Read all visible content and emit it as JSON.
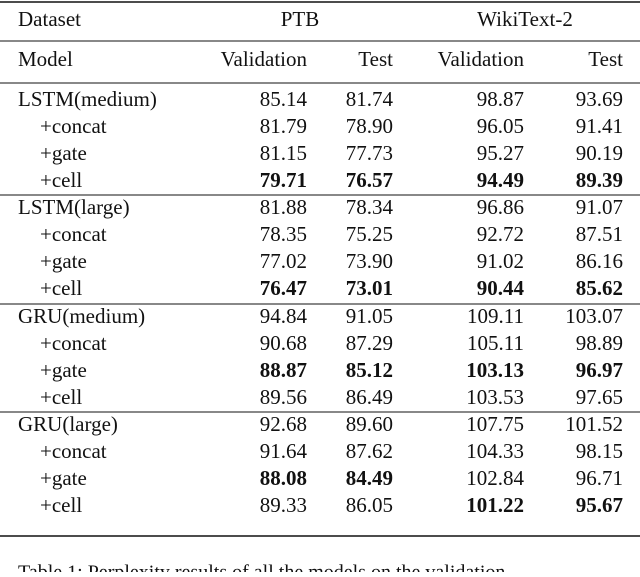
{
  "table": {
    "header": {
      "dataset": "Dataset",
      "groups": [
        "PTB",
        "WikiText-2"
      ]
    },
    "columns": [
      "Model",
      "Validation",
      "Test",
      "Validation",
      "Test"
    ],
    "sections": [
      {
        "rows": [
          [
            "LSTM(medium)",
            "85.14",
            "81.74",
            "98.87",
            "93.69"
          ],
          [
            "+concat",
            "81.79",
            "78.90",
            "96.05",
            "91.41"
          ],
          [
            "+gate",
            "81.15",
            "77.73",
            "95.27",
            "90.19"
          ],
          [
            "+cell",
            {
              "text": "79.71",
              "bold": true
            },
            {
              "text": "76.57",
              "bold": true
            },
            {
              "text": "94.49",
              "bold": true
            },
            {
              "text": "89.39",
              "bold": true
            }
          ]
        ]
      },
      {
        "rows": [
          [
            "LSTM(large)",
            "81.88",
            "78.34",
            "96.86",
            "91.07"
          ],
          [
            "+concat",
            "78.35",
            "75.25",
            "92.72",
            "87.51"
          ],
          [
            "+gate",
            "77.02",
            "73.90",
            "91.02",
            "86.16"
          ],
          [
            "+cell",
            {
              "text": "76.47",
              "bold": true
            },
            {
              "text": "73.01",
              "bold": true
            },
            {
              "text": "90.44",
              "bold": true
            },
            {
              "text": "85.62",
              "bold": true
            }
          ]
        ]
      },
      {
        "rows": [
          [
            "GRU(medium)",
            "94.84",
            "91.05",
            "109.11",
            "103.07"
          ],
          [
            "+concat",
            "90.68",
            "87.29",
            "105.11",
            "98.89"
          ],
          [
            "+gate",
            {
              "text": "88.87",
              "bold": true
            },
            {
              "text": "85.12",
              "bold": true
            },
            {
              "text": "103.13",
              "bold": true
            },
            {
              "text": "96.97",
              "bold": true
            }
          ],
          [
            "+cell",
            "89.56",
            "86.49",
            "103.53",
            "97.65"
          ]
        ]
      },
      {
        "rows": [
          [
            "GRU(large)",
            "92.68",
            "89.60",
            "107.75",
            "101.52"
          ],
          [
            "+concat",
            "91.64",
            "87.62",
            "104.33",
            "98.15"
          ],
          [
            "+gate",
            {
              "text": "88.08",
              "bold": true
            },
            {
              "text": "84.49",
              "bold": true
            },
            "102.84",
            "96.71"
          ],
          [
            "+cell",
            "89.33",
            "86.05",
            {
              "text": "101.22",
              "bold": true
            },
            {
              "text": "95.67",
              "bold": true
            }
          ]
        ]
      }
    ],
    "caption": "Table 1: Perplexity results of all the models on the validation"
  }
}
